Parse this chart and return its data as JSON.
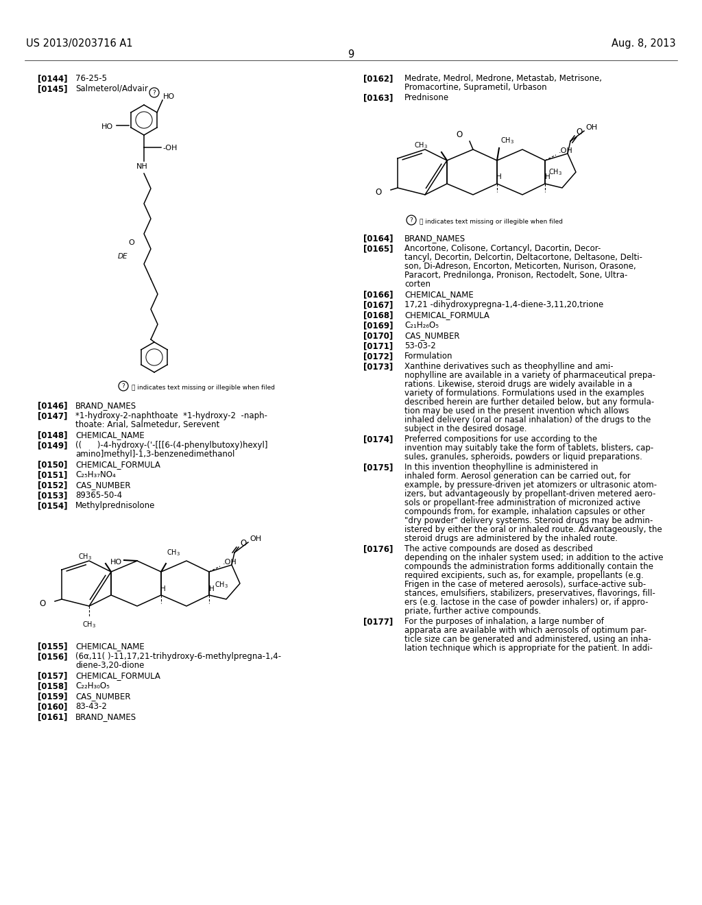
{
  "bg_color": "#ffffff",
  "header_left": "US 2013/0203716 A1",
  "header_right": "Aug. 8, 2013",
  "page_number": "9",
  "left_entries_top": [
    {
      "tag": "[0144]",
      "text": "76-25-5"
    },
    {
      "tag": "[0145]",
      "text": "Salmeterol/Advair"
    }
  ],
  "mol1_note": "⓷ indicates text missing or illegible when filed",
  "left_entries_mid": [
    {
      "tag": "[0146]",
      "text": "BRAND_NAMES"
    },
    {
      "tag": "[0147]",
      "text": "*1-hydroxy-2-naphthoate  *1-hydroxy-2  -naph-\nthoate: Arial, Salmetedur, Serevent"
    },
    {
      "tag": "[0148]",
      "text": "CHEMICAL_NAME"
    },
    {
      "tag": "[0149]",
      "text": "((      )-4-hydroxy-('-[[[6-(4-phenylbutoxy)hexyl]\namino]methyl]-1,3-benzenedimethanol"
    },
    {
      "tag": "[0150]",
      "text": "CHEMICAL_FORMULA"
    },
    {
      "tag": "[0151]",
      "text": "C₂₅H₃₇NO₄"
    },
    {
      "tag": "[0152]",
      "text": "CAS_NUMBER"
    },
    {
      "tag": "[0153]",
      "text": "89365-50-4"
    },
    {
      "tag": "[0154]",
      "text": "Methylprednisolone"
    }
  ],
  "left_entries_bot": [
    {
      "tag": "[0155]",
      "text": "CHEMICAL_NAME"
    },
    {
      "tag": "[0156]",
      "text": "(6α,11( )-11,17,21-trihydroxy-6-methylpregna-1,4-\ndiene-3,20-dione"
    },
    {
      "tag": "[0157]",
      "text": "CHEMICAL_FORMULA"
    },
    {
      "tag": "[0158]",
      "text": "C₂₂H₃₀O₅"
    },
    {
      "tag": "[0159]",
      "text": "CAS_NUMBER"
    },
    {
      "tag": "[0160]",
      "text": "83-43-2"
    },
    {
      "tag": "[0161]",
      "text": "BRAND_NAMES"
    }
  ],
  "right_entries_top": [
    {
      "tag": "[0162]",
      "text": "Medrate, Medrol, Medrone, Metastab, Metrisone,\nPromacortine, Suprametil, Urbason"
    },
    {
      "tag": "[0163]",
      "text": "Prednisone"
    }
  ],
  "mol2_note": "⓷ indicates text missing or illegible when filed",
  "right_entries_bot": [
    {
      "tag": "[0164]",
      "text": "BRAND_NAMES"
    },
    {
      "tag": "[0165]",
      "text": "Ancortone, Colisone, Cortancyl, Dacortin, Decor-\ntancyl, Decortin, Delcortin, Deltacortone, Deltasone, Delti-\nson, Di-Adreson, Encorton, Meticorten, Nurison, Orasone,\nParacort, Prednilonga, Pronison, Rectodelt, Sone, Ultra-\ncorten"
    },
    {
      "tag": "[0166]",
      "text": "CHEMICAL_NAME"
    },
    {
      "tag": "[0167]",
      "text": "17,21 -dihydroxypregna-1,4-diene-3,11,20,trione"
    },
    {
      "tag": "[0168]",
      "text": "CHEMICAL_FORMULA"
    },
    {
      "tag": "[0169]",
      "text": "C₂₁H₂₆O₅"
    },
    {
      "tag": "[0170]",
      "text": "CAS_NUMBER"
    },
    {
      "tag": "[0171]",
      "text": "53-03-2"
    },
    {
      "tag": "[0172]",
      "text": "Formulation"
    },
    {
      "tag": "[0173]",
      "text": "Xanthine derivatives such as theophylline and ami-\nnophylline are available in a variety of pharmaceutical prepa-\nrations. Likewise, steroid drugs are widely available in a\nvariety of formulations. Formulations used in the examples\ndescribed herein are further detailed below, but any formula-\ntion may be used in the present invention which allows\ninhaled delivery (oral or nasal inhalation) of the drugs to the\nsubject in the desired dosage."
    },
    {
      "tag": "[0174]",
      "text": "Preferred compositions for use according to the\ninvention may suitably take the form of tablets, blisters, cap-\nsules, granules, spheroids, powders or liquid preparations."
    },
    {
      "tag": "[0175]",
      "text": "In this invention theophylline is administered in\ninhaled form. Aerosol generation can be carried out, for\nexample, by pressure-driven jet atomizers or ultrasonic atom-\nizers, but advantageously by propellant-driven metered aero-\nsols or propellant-free administration of micronized active\ncompounds from, for example, inhalation capsules or other\n\"dry powder\" delivery systems. Steroid drugs may be admin-\nistered by either the oral or inhaled route. Advantageously, the\nsteroid drugs are administered by the inhaled route."
    },
    {
      "tag": "[0176]",
      "text": "The active compounds are dosed as described\ndepending on the inhaler system used; in addition to the active\ncompounds the administration forms additionally contain the\nrequired excipients, such as, for example, propellants (e.g.\nFrigen in the case of metered aerosols), surface-active sub-\nstances, emulsifiers, stabilizers, preservatives, flavorings, fill-\ners (e.g. lactose in the case of powder inhalers) or, if appro-\npriate, further active compounds."
    },
    {
      "tag": "[0177]",
      "text": "For the purposes of inhalation, a large number of\napparata are available with which aerosols of optimum par-\nticle size can be generated and administered, using an inha-\nlation technique which is appropriate for the patient. In addi-"
    }
  ]
}
